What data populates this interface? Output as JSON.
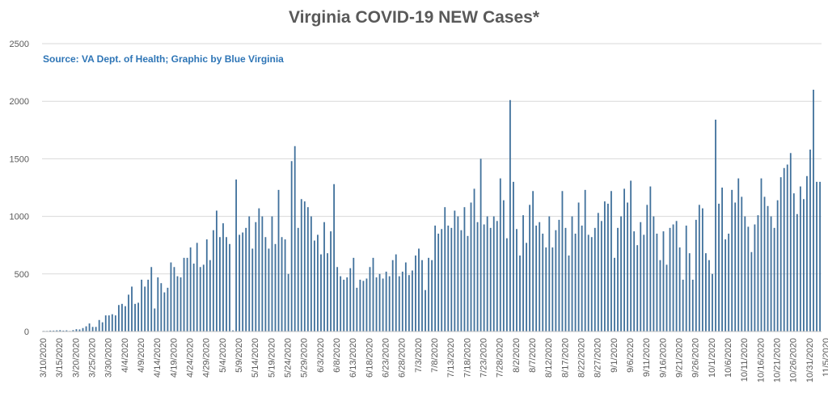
{
  "chart_data": {
    "type": "bar",
    "title": "Virginia COVID-19 NEW Cases*",
    "subtitle": "Source: VA Dept. of Health; Graphic by Blue Virginia",
    "xlabel": "",
    "ylabel": "",
    "ylim": [
      0,
      2500
    ],
    "yticks": [
      "0",
      "500",
      "1000",
      "1500",
      "2000",
      "2500"
    ],
    "grid": "horizontal",
    "legend": "none",
    "bar_color": "#41719c",
    "start_date": "3/10/2020",
    "xtick_labels": [
      "3/10/2020",
      "3/15/2020",
      "3/20/2020",
      "3/25/2020",
      "3/30/2020",
      "4/4/2020",
      "4/9/2020",
      "4/14/2020",
      "4/19/2020",
      "4/24/2020",
      "4/29/2020",
      "5/4/2020",
      "5/9/2020",
      "5/14/2020",
      "5/19/2020",
      "5/24/2020",
      "5/29/2020",
      "6/3/2020",
      "6/8/2020",
      "6/13/2020",
      "6/18/2020",
      "6/23/2020",
      "6/28/2020",
      "7/3/2020",
      "7/8/2020",
      "7/13/2020",
      "7/18/2020",
      "7/23/2020",
      "7/28/2020",
      "8/2/2020",
      "8/7/2020",
      "8/12/2020",
      "8/17/2020",
      "8/22/2020",
      "8/27/2020",
      "9/1/2020",
      "9/6/2020",
      "9/11/2020",
      "9/16/2020",
      "9/21/2020",
      "9/26/2020",
      "10/1/2020",
      "10/6/2020",
      "10/11/2020",
      "10/16/2020",
      "10/21/2020",
      "10/26/2020",
      "10/31/2020",
      "11/5/2020"
    ],
    "values": [
      5,
      5,
      8,
      8,
      10,
      12,
      8,
      10,
      5,
      12,
      20,
      18,
      30,
      45,
      70,
      40,
      40,
      100,
      80,
      140,
      140,
      150,
      140,
      230,
      240,
      220,
      320,
      390,
      240,
      250,
      450,
      390,
      450,
      560,
      200,
      470,
      420,
      340,
      380,
      600,
      560,
      480,
      470,
      640,
      640,
      730,
      590,
      770,
      560,
      580,
      800,
      620,
      880,
      1050,
      820,
      940,
      820,
      760,
      10,
      1320,
      840,
      860,
      900,
      1000,
      720,
      950,
      1070,
      1000,
      820,
      720,
      1000,
      760,
      1230,
      820,
      800,
      500,
      1480,
      1610,
      900,
      1150,
      1130,
      1080,
      1000,
      790,
      840,
      670,
      950,
      680,
      870,
      1280,
      560,
      480,
      450,
      470,
      550,
      640,
      380,
      450,
      440,
      460,
      560,
      640,
      470,
      500,
      460,
      520,
      480,
      620,
      670,
      480,
      520,
      600,
      490,
      530,
      660,
      720,
      620,
      360,
      640,
      620,
      920,
      850,
      890,
      1080,
      920,
      900,
      1050,
      1000,
      880,
      1080,
      830,
      1120,
      1240,
      950,
      1500,
      930,
      1000,
      900,
      1000,
      960,
      1330,
      1140,
      810,
      2010,
      1300,
      890,
      660,
      1010,
      770,
      1100,
      1220,
      920,
      950,
      850,
      730,
      1000,
      730,
      880,
      970,
      1220,
      900,
      660,
      1000,
      850,
      1120,
      920,
      1230,
      840,
      820,
      900,
      1030,
      960,
      1130,
      1110,
      1220,
      640,
      900,
      1000,
      1240,
      1120,
      1310,
      870,
      750,
      950,
      840,
      1100,
      1260,
      1000,
      850,
      620,
      870,
      580,
      900,
      930,
      960,
      730,
      450,
      920,
      680,
      450,
      970,
      1100,
      1070,
      680,
      620,
      500,
      1840,
      1110,
      1250,
      800,
      850,
      1230,
      1120,
      1330,
      1170,
      1000,
      910,
      690,
      930,
      1010,
      1330,
      1170,
      1090,
      1000,
      900,
      1140,
      1340,
      1420,
      1450,
      1550,
      1200,
      1020,
      1260,
      1150,
      1350,
      1580,
      2100,
      1300,
      1300
    ]
  }
}
